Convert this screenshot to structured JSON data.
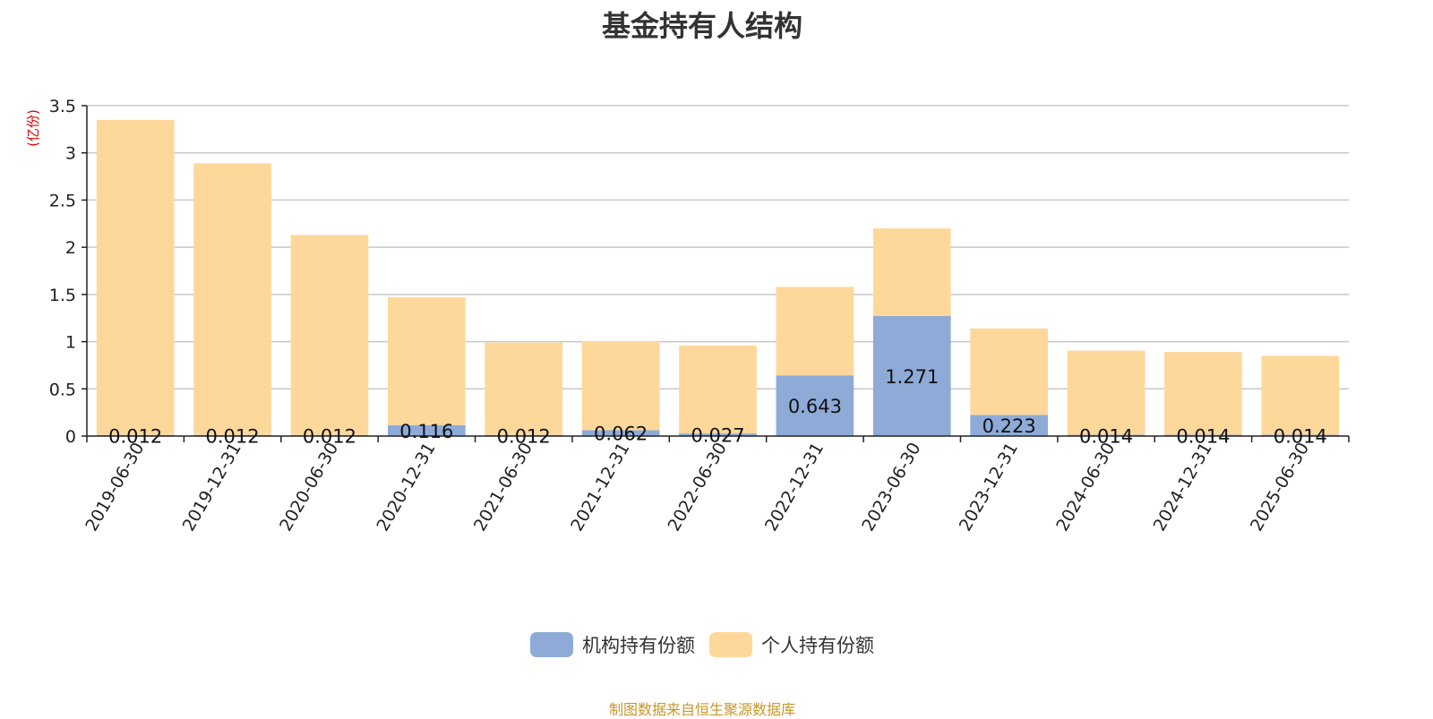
{
  "source": "制图数据来自恒生聚源数据库",
  "chart_data": {
    "type": "bar",
    "stacked": true,
    "title": "基金持有人结构",
    "ylabel": "(亿份)",
    "xlabel": "",
    "ylim": [
      0,
      3.5
    ],
    "yticks": [
      "0",
      "0.5",
      "1",
      "1.5",
      "2",
      "2.5",
      "3",
      "3.5"
    ],
    "grid": true,
    "legend_position": "bottom",
    "categories": [
      "2019-06-30",
      "2019-12-31",
      "2020-06-30",
      "2020-12-31",
      "2021-06-30",
      "2021-12-31",
      "2022-06-30",
      "2022-12-31",
      "2023-06-30",
      "2023-12-31",
      "2024-06-30",
      "2024-12-31",
      "2025-06-30"
    ],
    "series": [
      {
        "name": "机构持有份额",
        "color": "#8eabd8",
        "values": [
          0.012,
          0.012,
          0.012,
          0.116,
          0.012,
          0.062,
          0.027,
          0.643,
          1.271,
          0.223,
          0.014,
          0.014,
          0.014
        ],
        "labels": [
          "0.012",
          "0.012",
          "0.012",
          "0.116",
          "0.012",
          "0.062",
          "0.027",
          "0.643",
          "1.271",
          "0.223",
          "0.014",
          "0.014",
          "0.014"
        ]
      },
      {
        "name": "个人持有份额",
        "color": "#fed89b",
        "values": [
          3.338,
          2.878,
          2.118,
          1.354,
          0.978,
          0.943,
          0.933,
          0.937,
          0.929,
          0.917,
          0.891,
          0.876,
          0.836
        ]
      }
    ]
  }
}
